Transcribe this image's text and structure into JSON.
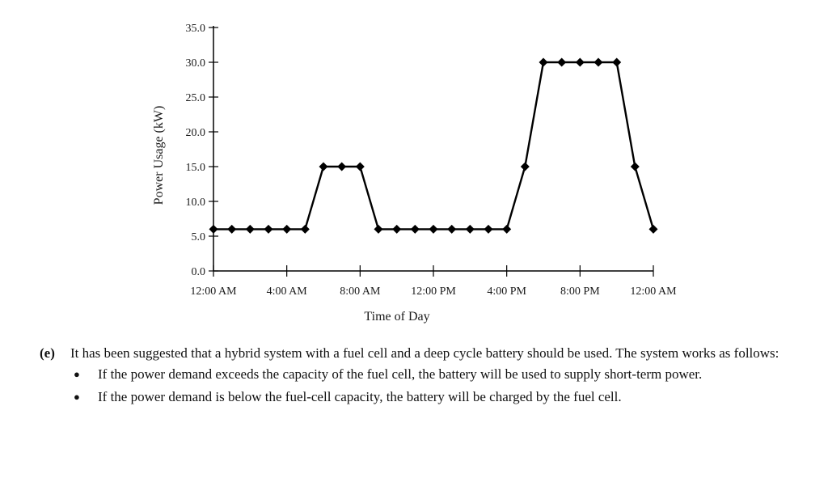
{
  "chart_data": {
    "type": "line",
    "xlabel": "Time of Day",
    "ylabel": "Power Usage (kW)",
    "x_tick_labels": [
      "12:00 AM",
      "4:00 AM",
      "8:00 AM",
      "12:00 PM",
      "4:00 PM",
      "8:00 PM",
      "12:00 AM"
    ],
    "y_tick_labels": [
      "0.0",
      "5.0",
      "10.0",
      "15.0",
      "20.0",
      "25.0",
      "30.0",
      "35.0"
    ],
    "xlim": [
      0,
      24
    ],
    "ylim": [
      0,
      35
    ],
    "x_unit": "hours from midnight",
    "grid": false,
    "legend": "none",
    "marker": "diamond",
    "line_color": "#000000",
    "series": [
      {
        "x": [
          0,
          1,
          2,
          3,
          4,
          5,
          6,
          7,
          8,
          9,
          10,
          11,
          12,
          13,
          14,
          15,
          16,
          17,
          18,
          19,
          20,
          21,
          22,
          23,
          24
        ],
        "values": [
          6,
          6,
          6,
          6,
          6,
          6,
          15,
          15,
          15,
          6,
          6,
          6,
          6,
          6,
          6,
          6,
          6,
          15,
          30,
          30,
          30,
          30,
          30,
          15,
          6
        ]
      }
    ]
  },
  "question": {
    "label": "(e)",
    "intro": "It has been suggested that a hybrid system with a fuel cell and a deep cycle battery should be used. The system works as follows:",
    "bullets": [
      "If the power demand exceeds the capacity of the fuel cell, the battery will be used to supply short-term power.",
      "If the power demand is below the fuel-cell capacity, the battery will be charged by the fuel cell."
    ],
    "bullet_icon": "filled-circle-bullet"
  }
}
